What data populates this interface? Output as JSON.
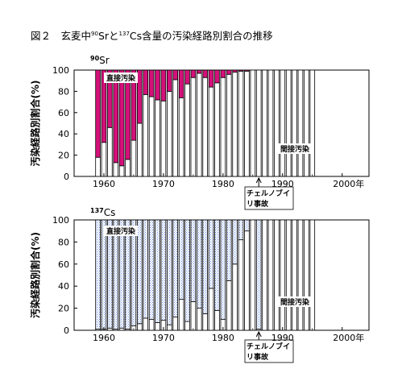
{
  "figure": {
    "prefix": "図２",
    "title_part1": "玄麦中",
    "title_sup1": "90",
    "title_part2": "Srと",
    "title_sup2": "137",
    "title_part3": "Cs含量の汚染経路別割合の推移"
  },
  "chart_data": [
    {
      "type": "bar",
      "stacked": true,
      "panel_label_sup": "90",
      "panel_label_main": "Sr",
      "ylabel": "汚染経路別割合(%)",
      "ylim": [
        0,
        100
      ],
      "yticks": [
        0,
        20,
        40,
        60,
        80,
        100
      ],
      "xticks": [
        "1960",
        "1970",
        "1980",
        "1990",
        "2000年"
      ],
      "x": [
        1959,
        1960,
        1961,
        1962,
        1963,
        1964,
        1965,
        1966,
        1967,
        1968,
        1969,
        1970,
        1971,
        1972,
        1973,
        1974,
        1975,
        1976,
        1977,
        1978,
        1979,
        1980,
        1981,
        1982,
        1983,
        1984,
        1985,
        1986,
        1987,
        1988,
        1989,
        1990,
        1991,
        1992,
        1993,
        1994,
        1995
      ],
      "series": [
        {
          "name": "間接汚染",
          "color": "#ffffff",
          "values": [
            18,
            32,
            46,
            13,
            10,
            16,
            34,
            50,
            77,
            75,
            72,
            71,
            80,
            91,
            74,
            87,
            93,
            97,
            93,
            84,
            88,
            93,
            96,
            98,
            99,
            99,
            100,
            100,
            100,
            100,
            100,
            100,
            100,
            100,
            100,
            100,
            100
          ]
        },
        {
          "name": "直接汚染",
          "color": "#d4107a",
          "values": [
            82,
            68,
            54,
            87,
            90,
            84,
            66,
            50,
            23,
            25,
            28,
            29,
            20,
            9,
            26,
            13,
            7,
            3,
            7,
            16,
            12,
            7,
            4,
            2,
            1,
            1,
            0,
            0,
            0,
            0,
            0,
            0,
            0,
            0,
            0,
            0,
            0
          ]
        }
      ],
      "annotation": {
        "text_line1": "チェルノブイ",
        "text_line2": "リ事故",
        "year": 1986
      }
    },
    {
      "type": "bar",
      "stacked": true,
      "panel_label_sup": "137",
      "panel_label_main": "Cs",
      "ylabel": "汚染経路別割合(%)",
      "ylim": [
        0,
        100
      ],
      "yticks": [
        0,
        20,
        40,
        60,
        80,
        100
      ],
      "xticks": [
        "1960",
        "1970",
        "1980",
        "1990",
        "2000年"
      ],
      "x": [
        1959,
        1960,
        1961,
        1962,
        1963,
        1964,
        1965,
        1966,
        1967,
        1968,
        1969,
        1970,
        1971,
        1972,
        1973,
        1974,
        1975,
        1976,
        1977,
        1978,
        1979,
        1980,
        1981,
        1982,
        1983,
        1984,
        1985,
        1986,
        1987,
        1988,
        1989,
        1990,
        1991,
        1992,
        1993,
        1994,
        1995
      ],
      "series": [
        {
          "name": "間接汚染",
          "color": "#ffffff",
          "values": [
            1,
            1,
            2,
            1,
            2,
            1,
            4,
            6,
            11,
            10,
            7,
            9,
            5,
            12,
            28,
            8,
            26,
            20,
            15,
            38,
            18,
            10,
            45,
            60,
            82,
            90,
            100,
            1,
            100,
            100,
            100,
            100,
            100,
            100,
            100,
            100,
            100
          ]
        },
        {
          "name": "直接汚染",
          "color": "#7fa8ff",
          "values": [
            99,
            99,
            98,
            99,
            98,
            99,
            96,
            94,
            89,
            90,
            93,
            91,
            95,
            88,
            72,
            92,
            74,
            80,
            85,
            62,
            82,
            90,
            55,
            40,
            18,
            10,
            0,
            99,
            0,
            0,
            0,
            0,
            0,
            0,
            0,
            0,
            0
          ]
        }
      ],
      "annotation": {
        "text_line1": "チェルノブイ",
        "text_line2": "リ事故",
        "year": 1986
      }
    }
  ]
}
